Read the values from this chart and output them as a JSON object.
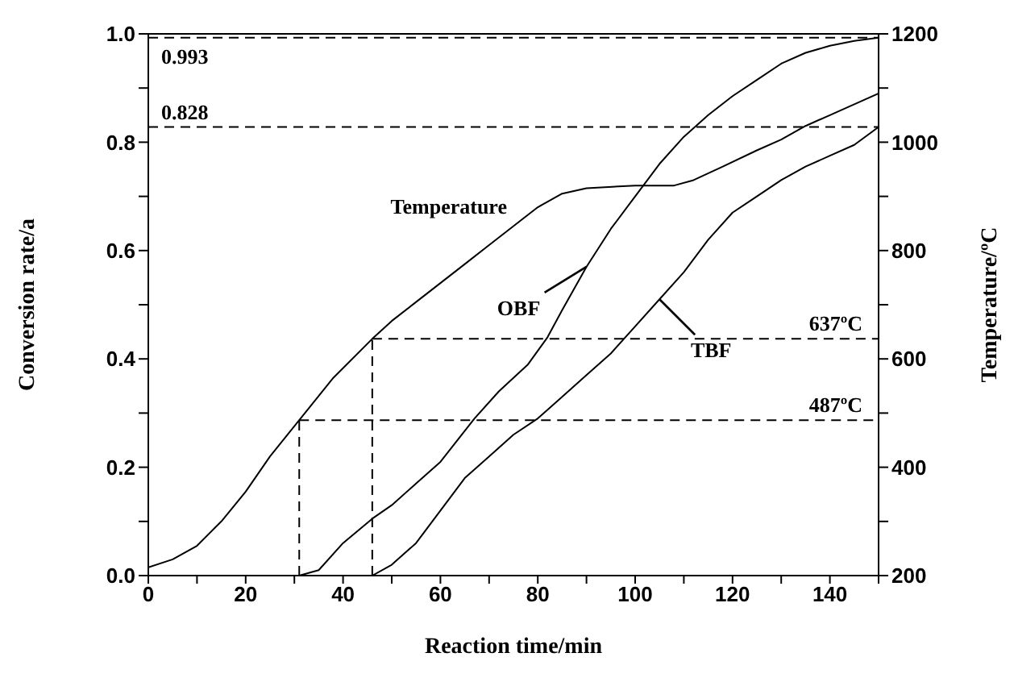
{
  "chart_data": {
    "type": "line",
    "xlabel": "Reaction time/min",
    "ylabel": "Conversion rate/a",
    "y2label": "Temperature/ºC",
    "xlim": [
      0,
      150
    ],
    "xticks": [
      0,
      {
        "value": 10,
        "label": null
      },
      20,
      {
        "value": 30,
        "label": null
      },
      40,
      {
        "value": 50,
        "label": null
      },
      60,
      {
        "value": 70,
        "label": null
      },
      80,
      {
        "value": 90,
        "label": null
      },
      100,
      {
        "value": 110,
        "label": null
      },
      120,
      {
        "value": 130,
        "label": null
      },
      140,
      {
        "value": 150,
        "label": null
      }
    ],
    "ylim": [
      0,
      1
    ],
    "yticks": [
      {
        "value": 0,
        "label": "0.0"
      },
      {
        "value": 0.1,
        "label": null
      },
      {
        "value": 0.2,
        "label": "0.2"
      },
      {
        "value": 0.3,
        "label": null
      },
      {
        "value": 0.4,
        "label": "0.4"
      },
      {
        "value": 0.5,
        "label": null
      },
      {
        "value": 0.6,
        "label": "0.6"
      },
      {
        "value": 0.7,
        "label": null
      },
      {
        "value": 0.8,
        "label": "0.8"
      },
      {
        "value": 0.9,
        "label": null
      },
      {
        "value": 1,
        "label": "1.0"
      }
    ],
    "y2lim": [
      200,
      1200
    ],
    "y2ticks": [
      200,
      {
        "value": 300,
        "label": null
      },
      400,
      {
        "value": 500,
        "label": null
      },
      600,
      {
        "value": 700,
        "label": null
      },
      800,
      {
        "value": 900,
        "label": null
      },
      1000,
      {
        "value": 1100,
        "label": null
      },
      1200
    ],
    "grid": false,
    "marker": "none",
    "line_style": "solid",
    "series": [
      {
        "name": "Temperature",
        "color": "#000000",
        "axis": "y2",
        "x": [
          0,
          5,
          10,
          15,
          20,
          25,
          31,
          38,
          46,
          50,
          55,
          60,
          65,
          70,
          75,
          80,
          85,
          90,
          100,
          108,
          112,
          118,
          125,
          130,
          135,
          140,
          145,
          150
        ],
        "values": [
          215,
          230,
          255,
          300,
          355,
          420,
          487,
          565,
          637,
          670,
          705,
          740,
          775,
          810,
          845,
          880,
          905,
          915,
          920,
          920,
          930,
          955,
          985,
          1005,
          1030,
          1050,
          1070,
          1090
        ]
      },
      {
        "name": "OBF",
        "color": "#000000",
        "x": [
          31,
          35,
          40,
          46,
          50,
          55,
          60,
          67,
          72,
          78,
          82,
          85,
          90,
          95,
          100,
          105,
          110,
          115,
          120,
          125,
          130,
          135,
          140,
          145,
          150
        ],
        "values": [
          0,
          0.01,
          0.06,
          0.105,
          0.13,
          0.17,
          0.21,
          0.29,
          0.34,
          0.39,
          0.44,
          0.49,
          0.57,
          0.64,
          0.7,
          0.76,
          0.81,
          0.85,
          0.885,
          0.915,
          0.945,
          0.965,
          0.978,
          0.987,
          0.993
        ]
      },
      {
        "name": "TBF",
        "color": "#000000",
        "x": [
          46,
          50,
          55,
          60,
          65,
          70,
          75,
          80,
          85,
          90,
          95,
          100,
          105,
          110,
          115,
          120,
          125,
          130,
          135,
          140,
          145,
          150
        ],
        "values": [
          0,
          0.02,
          0.06,
          0.12,
          0.18,
          0.22,
          0.26,
          0.29,
          0.33,
          0.37,
          0.41,
          0.46,
          0.51,
          0.56,
          0.62,
          0.67,
          0.7,
          0.73,
          0.755,
          0.775,
          0.795,
          0.828
        ]
      }
    ],
    "ref_lines": [
      {
        "axis": "y",
        "value": 0.993,
        "label": "0.993",
        "line_style": "dashed"
      },
      {
        "axis": "y",
        "value": 0.828,
        "label": "0.828",
        "line_style": "dashed"
      },
      {
        "axis": "y2",
        "value": 487,
        "label": "487ºC",
        "line_style": "dashed"
      },
      {
        "axis": "y2",
        "value": 637,
        "label": "637ºC",
        "line_style": "dashed"
      },
      {
        "axis": "x",
        "value": 31,
        "label": null,
        "line_style": "dashed"
      },
      {
        "axis": "x",
        "value": 46,
        "label": null,
        "line_style": "dashed"
      }
    ]
  }
}
